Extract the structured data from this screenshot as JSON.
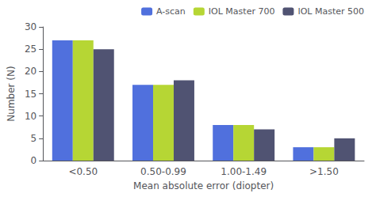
{
  "chart_data": {
    "type": "bar",
    "categories": [
      "<0.50",
      "0.50-0.99",
      "1.00-1.49",
      ">1.50"
    ],
    "series": [
      {
        "name": "A-scan",
        "values": [
          27,
          17,
          8,
          3
        ]
      },
      {
        "name": "IOL Master 700",
        "values": [
          27,
          17,
          8,
          3
        ]
      },
      {
        "name": "IOL Master 500",
        "values": [
          25,
          18,
          7,
          5
        ]
      }
    ],
    "xlabel": "Mean absolute error (diopter)",
    "ylabel": "Number (N)",
    "ylim": [
      0,
      30
    ],
    "yticks": [
      0,
      5,
      10,
      15,
      20,
      25,
      30
    ],
    "grid": false,
    "legend": "upper right"
  }
}
